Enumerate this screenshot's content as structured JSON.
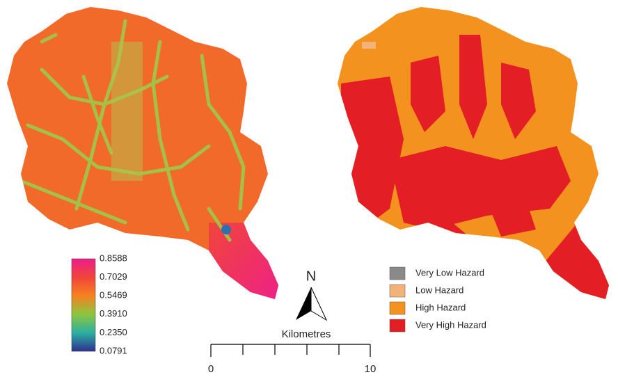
{
  "left_map": {
    "colorbar": {
      "labels": [
        "0.8588",
        "0.7029",
        "0.5469",
        "0.3910",
        "0.2350",
        "0.0791"
      ]
    }
  },
  "right_map": {
    "legend": [
      {
        "label": "Very Low Hazard",
        "color": "#8a8a8a"
      },
      {
        "label": "Low Hazard",
        "color": "#f2b27a"
      },
      {
        "label": "High Hazard",
        "color": "#f3921e"
      },
      {
        "label": "Very High Hazard",
        "color": "#e31e24"
      }
    ]
  },
  "north_arrow": {
    "label": "N"
  },
  "scale_bar": {
    "title": "Kilometres",
    "start_label": "0",
    "end_label": "10"
  }
}
